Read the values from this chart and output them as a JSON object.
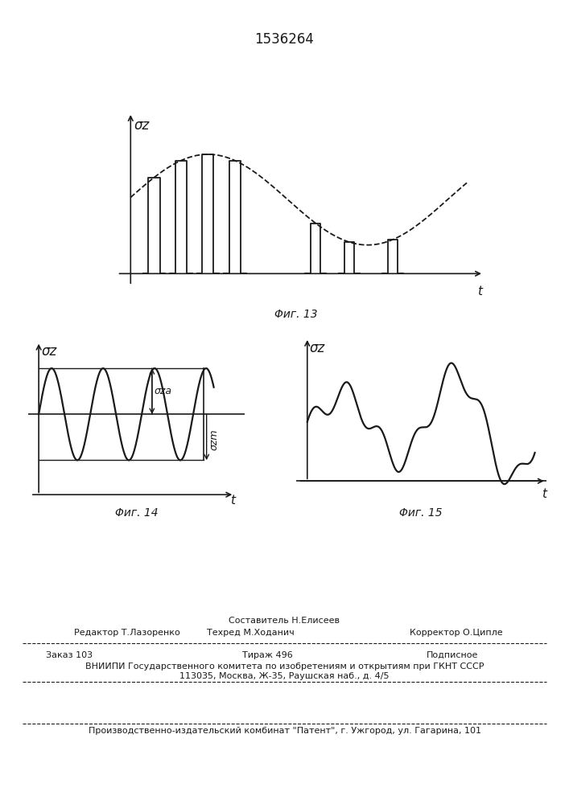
{
  "title_patent": "1536264",
  "fig13_caption": "Φиг. 13",
  "fig14_caption": "Φиг. 14",
  "fig15_caption": "Φиг. 15",
  "ylabel13": "σz",
  "ylabel14": "σz",
  "ylabel15": "σz",
  "xlabel13": "t",
  "xlabel14": "t",
  "xlabel15": "t",
  "annotation14_a": "σza",
  "annotation14_m": "σzm",
  "footer_line1": "Составитель Н.Елисеев",
  "footer_editor": "Редактор Т.Лазоренко",
  "footer_tech": "Техред М.Ходанич",
  "footer_corr": "Корректор О.Ципле",
  "footer_order": "Заказ 103",
  "footer_circ": "Тираж 496",
  "footer_sub": "Подписное",
  "footer_line4": "ВНИИПИ Государственного комитета по изобретениям и открытиям при ГКНТ СССР",
  "footer_line5": "113035, Москва, Ж-35, Раушская наб., д. 4/5",
  "footer_line6": "Производственно-издательский комбинат \"Патент\", г. Ужгород, ул. Гагарина, 101",
  "line_color": "#1a1a1a"
}
